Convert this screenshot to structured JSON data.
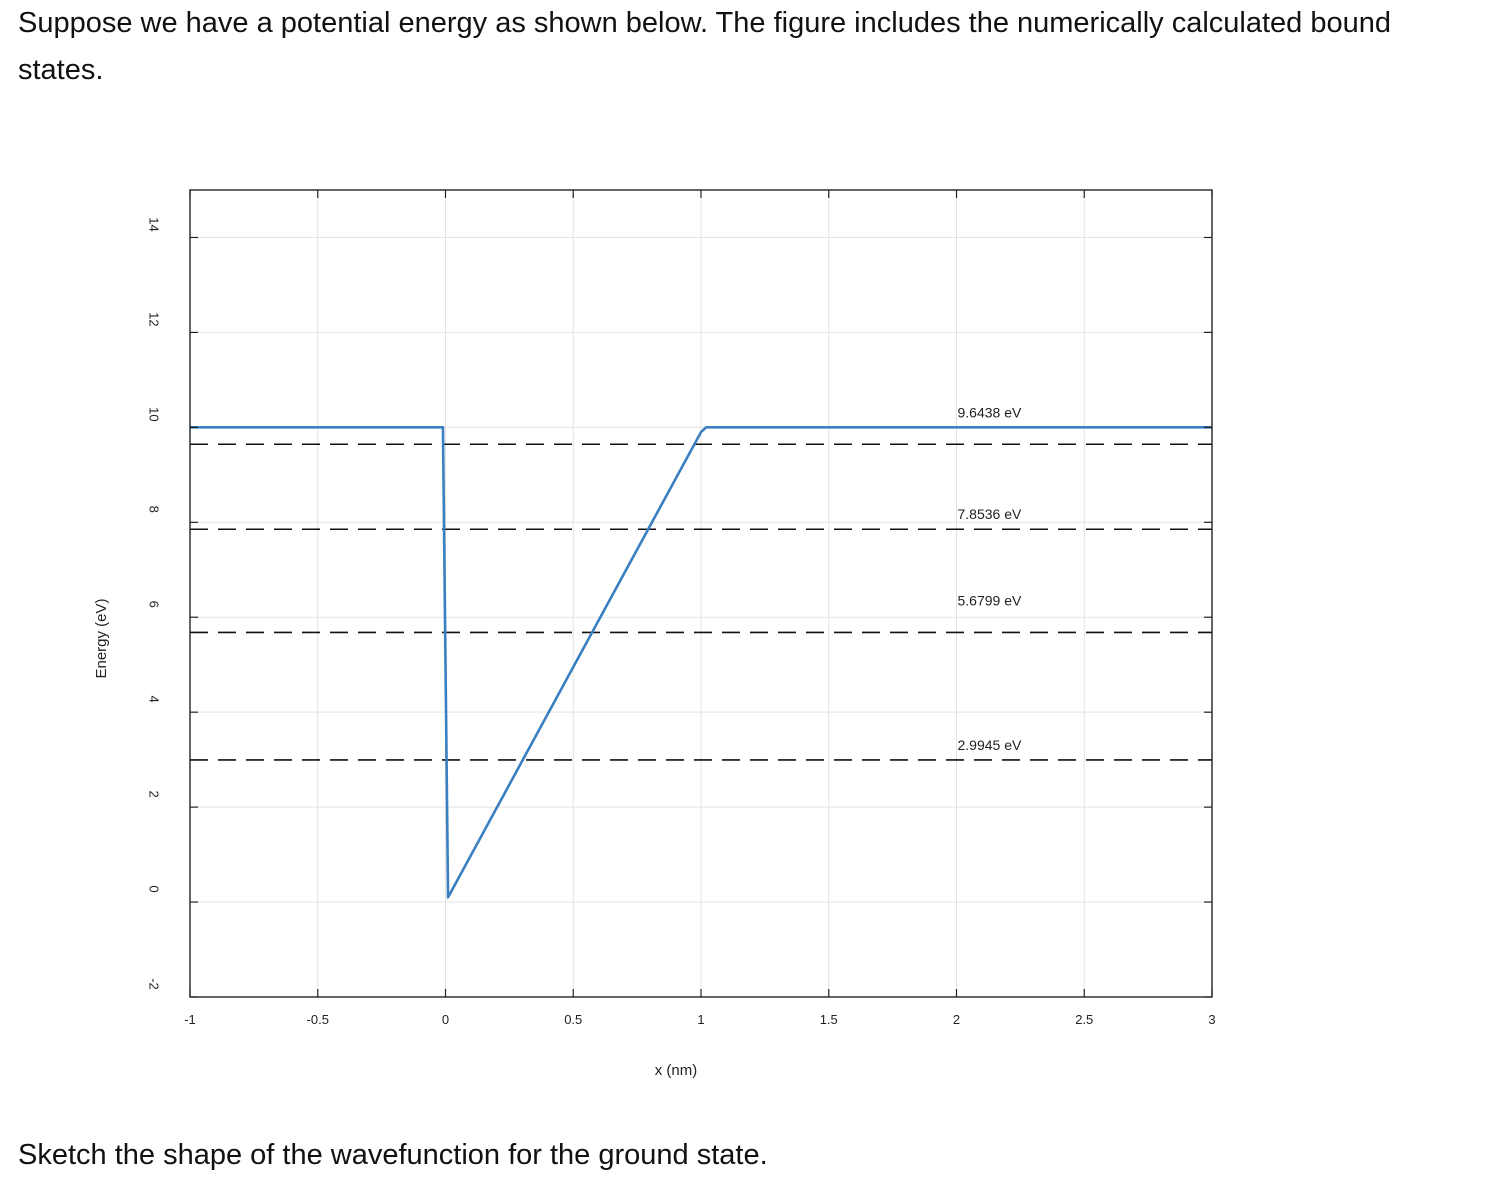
{
  "intro_text": "Suppose we have a potential energy as shown below. The figure includes the numerically calculated bound states.",
  "question_text": "Sketch the shape of the wavefunction for the ground state.",
  "chart_data": {
    "type": "line",
    "title": "",
    "xlabel": "x (nm)",
    "ylabel": "Energy (eV)",
    "xlim": [
      -1,
      3
    ],
    "ylim": [
      -2,
      15
    ],
    "xticks": [
      -1,
      -0.5,
      0,
      0.5,
      1,
      1.5,
      2,
      2.5,
      3
    ],
    "xtick_labels": [
      "-1",
      "-0.5",
      "0",
      "0.5",
      "1",
      "1.5",
      "2",
      "2.5",
      "3"
    ],
    "yticks": [
      -2,
      0,
      2,
      4,
      6,
      8,
      10,
      12,
      14
    ],
    "ytick_labels": [
      "-2",
      "0",
      "2",
      "4",
      "6",
      "8",
      "10",
      "12",
      "14"
    ],
    "grid": true,
    "potential": {
      "color": "#3a7fc1",
      "x": [
        -1,
        -0.01,
        0.01,
        1.0,
        1.02,
        3
      ],
      "y": [
        10,
        10,
        0.1,
        9.9,
        10,
        10
      ]
    },
    "bound_states": [
      {
        "energy": 9.6438,
        "label": "9.6438 eV",
        "label_position": "above"
      },
      {
        "energy": 7.8536,
        "label": "7.8536 eV",
        "label_position": "below"
      },
      {
        "energy": 5.6799,
        "label": "5.6799 eV",
        "label_position": "above"
      },
      {
        "energy": 2.9945,
        "label": "2.9945 eV",
        "label_position": "below"
      }
    ],
    "label_x": 2.0
  }
}
